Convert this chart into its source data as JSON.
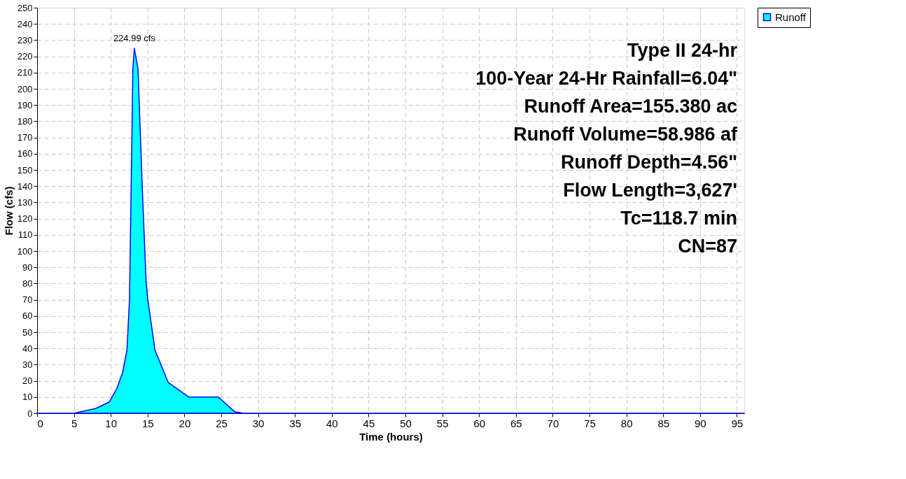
{
  "chart_data": {
    "type": "area",
    "xlabel": "Time  (hours)",
    "ylabel": "Flow  (cfs)",
    "x": [
      0,
      5,
      8,
      9.8,
      10.8,
      11.6,
      12.2,
      12.55,
      12.8,
      13.0,
      13.2,
      13.7,
      14.3,
      14.8,
      15.0,
      16.0,
      17.8,
      20.6,
      24.6,
      26.8,
      28,
      30,
      40,
      50,
      60,
      70,
      80,
      90,
      96
    ],
    "series": [
      {
        "name": "Runoff",
        "color": "#00ffff",
        "values": [
          0,
          0,
          3,
          7,
          15,
          25,
          39,
          71,
          149,
          212,
          224.99,
          212,
          136,
          81,
          71,
          39,
          19,
          10,
          10,
          1,
          0,
          0,
          0,
          0,
          0,
          0,
          0,
          0,
          0
        ]
      }
    ],
    "xlim": [
      0,
      96
    ],
    "xticks": [
      0,
      5,
      10,
      15,
      20,
      25,
      30,
      35,
      40,
      45,
      50,
      55,
      60,
      65,
      70,
      75,
      80,
      85,
      90,
      95
    ],
    "ylim": [
      0,
      250
    ],
    "yticks": [
      0,
      10,
      20,
      30,
      40,
      50,
      60,
      70,
      80,
      90,
      100,
      110,
      120,
      130,
      140,
      150,
      160,
      170,
      180,
      190,
      200,
      210,
      220,
      230,
      240,
      250
    ],
    "grid": true,
    "legend": "top right",
    "annotations": [
      {
        "text": "224.99 cfs",
        "x": 13.2,
        "y": 224.99
      },
      "Type II 24-hr",
      "100-Year 24-Hr Rainfall=6.04\"",
      "Runoff Area=155.380 ac",
      "Runoff Volume=58.986 af",
      "Runoff Depth=4.56\"",
      "Flow Length=3,627'",
      "Tc=118.7 min",
      "CN=87"
    ]
  }
}
